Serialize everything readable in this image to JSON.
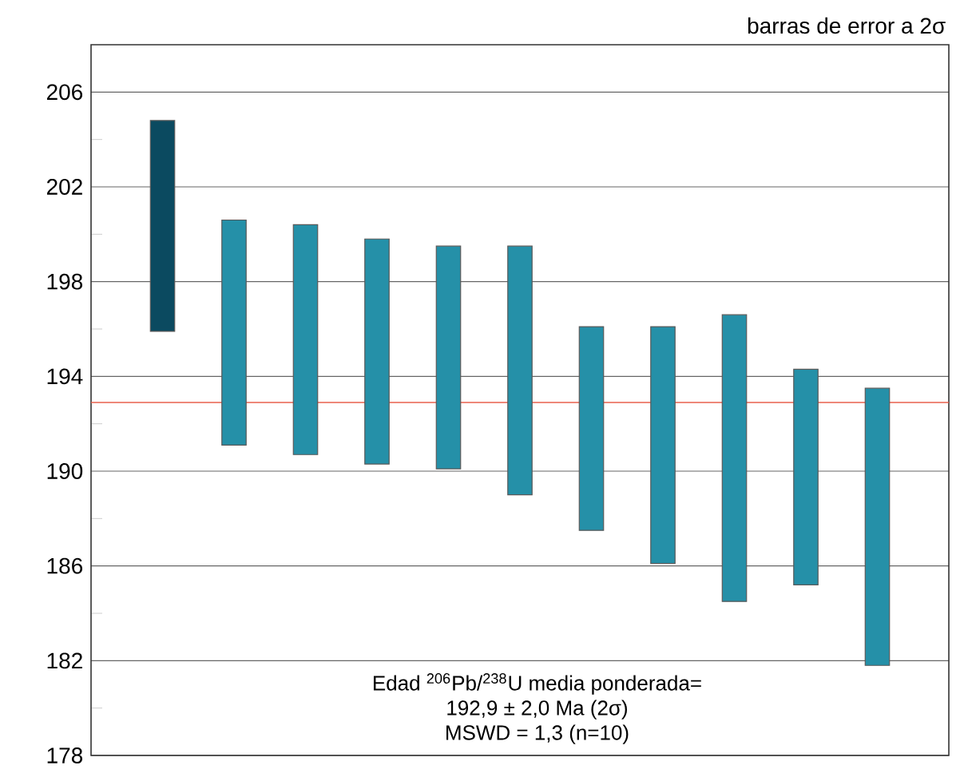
{
  "chart_data": {
    "type": "bar",
    "categories": [
      null,
      null,
      null,
      null,
      null,
      null,
      null,
      null,
      null,
      null,
      null
    ],
    "base": [
      195.9,
      191.1,
      190.7,
      190.3,
      190.1,
      189.0,
      187.5,
      186.1,
      184.5,
      185.2,
      181.8
    ],
    "values": [
      8.9,
      9.5,
      9.7,
      9.5,
      9.4,
      10.5,
      8.6,
      10.0,
      12.1,
      9.1,
      11.7
    ],
    "colors": [
      "#0b4a60",
      "#2590a8",
      "#2590a8",
      "#2590a8",
      "#2590a8",
      "#2590a8",
      "#2590a8",
      "#2590a8",
      "#2590a8",
      "#2590a8",
      "#2590a8"
    ],
    "ylim": [
      178,
      208
    ],
    "yticks": [
      178,
      {
        "value": 180,
        "label": null
      },
      182,
      {
        "value": 184,
        "label": null
      },
      186,
      {
        "value": 188,
        "label": null
      },
      190,
      {
        "value": 192,
        "label": null
      },
      194,
      {
        "value": 196,
        "label": null
      },
      198,
      {
        "value": 200,
        "label": null
      },
      202,
      {
        "value": 204,
        "label": null
      },
      206
    ],
    "grid": "y",
    "ref_lines": [
      {
        "axis": "y",
        "value": 192.9,
        "color": "#e8604c"
      }
    ],
    "annotations": [
      "barras de error a 2σ",
      "Edad $^{206}$Pb/$^{238}$U media ponderada=",
      "192,9 ± 2,0 Ma (2σ)",
      "MSWD = 1,3 (n=10)"
    ]
  }
}
